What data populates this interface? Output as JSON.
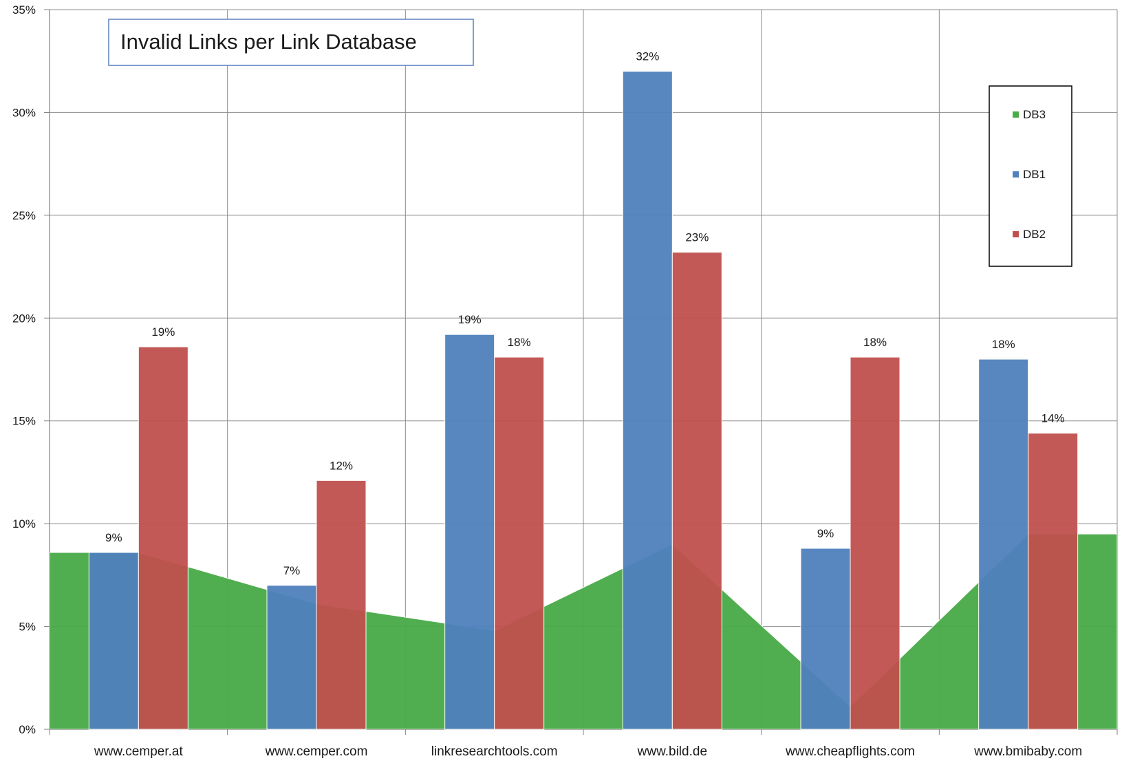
{
  "chart_data": {
    "type": "bar",
    "title": "Invalid Links per Link Database",
    "categories": [
      "www.cemper.at",
      "www.cemper.com",
      "linkresearchtools.com",
      "www.bild.de",
      "www.cheapflights.com",
      "www.bmibaby.com"
    ],
    "series": [
      {
        "name": "DB3",
        "type": "area",
        "color": "#4aab4a",
        "values": [
          8.6,
          6.1,
          4.8,
          9.0,
          1.1,
          9.5
        ]
      },
      {
        "name": "DB1",
        "type": "bar",
        "color": "#4f81bd",
        "values": [
          8.6,
          7.0,
          19.2,
          32.0,
          8.8,
          18.0
        ],
        "labels": [
          "9%",
          "7%",
          "19%",
          "32%",
          "9%",
          "18%"
        ]
      },
      {
        "name": "DB2",
        "type": "bar",
        "color": "#c0504d",
        "values": [
          18.6,
          12.1,
          18.1,
          23.2,
          18.1,
          14.4
        ],
        "labels": [
          "19%",
          "12%",
          "18%",
          "23%",
          "18%",
          "14%"
        ]
      }
    ],
    "ylim": [
      0,
      35
    ],
    "yticks": [
      0,
      5,
      10,
      15,
      20,
      25,
      30,
      35
    ],
    "ytick_labels": [
      "0%",
      "5%",
      "10%",
      "15%",
      "20%",
      "25%",
      "30%",
      "35%"
    ],
    "grid": true,
    "legend_position": "right"
  }
}
